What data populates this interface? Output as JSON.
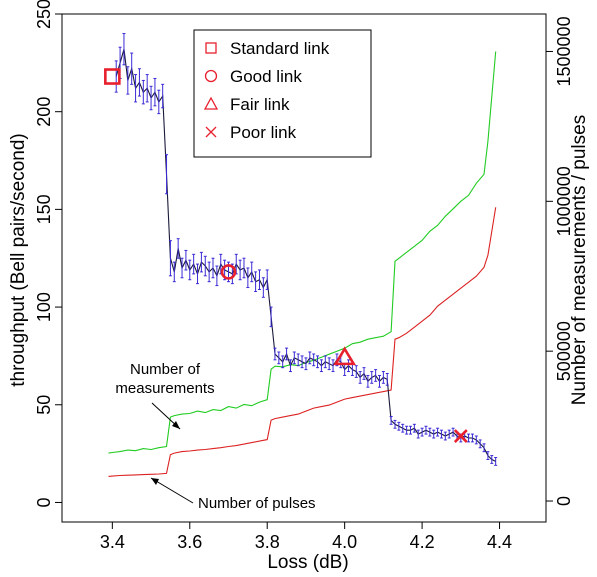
{
  "chart_data": {
    "type": "line",
    "xlabel": "Loss (dB)",
    "ylabel_left": "throughput (Bell pairs/second)",
    "ylabel_right": "Number of measurements / pulses",
    "xlim": [
      3.27,
      4.52
    ],
    "ylim_left": [
      -10,
      250
    ],
    "ylim_right": [
      -70000,
      1625000
    ],
    "x_ticks": [
      3.4,
      3.6,
      3.8,
      4.0,
      4.2,
      4.4
    ],
    "x_tick_labels": [
      "3.4",
      "3.6",
      "3.8",
      "4.0",
      "4.2",
      "4.4"
    ],
    "y_left_ticks": [
      0,
      50,
      100,
      150,
      200,
      250
    ],
    "y_left_tick_labels": [
      "0",
      "50",
      "100",
      "150",
      "200",
      "250"
    ],
    "y_right_ticks": [
      0,
      500000,
      1000000,
      1500000
    ],
    "y_right_tick_labels": [
      "0",
      "500000",
      "1000000",
      "1500000"
    ],
    "series": [
      {
        "name": "throughput",
        "color": "#3b2bd6",
        "line_color": "#1a1a3a",
        "axis": "left",
        "error_bars": true,
        "x": [
          3.41,
          3.42,
          3.43,
          3.44,
          3.45,
          3.46,
          3.47,
          3.48,
          3.49,
          3.5,
          3.51,
          3.52,
          3.53,
          3.54,
          3.55,
          3.56,
          3.57,
          3.58,
          3.59,
          3.6,
          3.61,
          3.62,
          3.63,
          3.64,
          3.65,
          3.66,
          3.67,
          3.68,
          3.69,
          3.7,
          3.71,
          3.72,
          3.73,
          3.74,
          3.75,
          3.76,
          3.77,
          3.78,
          3.79,
          3.8,
          3.81,
          3.82,
          3.83,
          3.84,
          3.85,
          3.86,
          3.87,
          3.88,
          3.89,
          3.9,
          3.91,
          3.92,
          3.93,
          3.94,
          3.95,
          3.96,
          3.97,
          3.98,
          3.99,
          4.0,
          4.01,
          4.02,
          4.03,
          4.04,
          4.05,
          4.06,
          4.07,
          4.08,
          4.09,
          4.1,
          4.11,
          4.12,
          4.13,
          4.14,
          4.15,
          4.16,
          4.17,
          4.18,
          4.19,
          4.2,
          4.21,
          4.22,
          4.23,
          4.24,
          4.25,
          4.26,
          4.27,
          4.28,
          4.29,
          4.3,
          4.31,
          4.32,
          4.33,
          4.34,
          4.35,
          4.36,
          4.37,
          4.38,
          4.39
        ],
        "y": [
          218,
          225,
          232,
          216,
          222,
          212,
          215,
          210,
          212,
          207,
          210,
          205,
          208,
          168,
          125,
          118,
          130,
          120,
          124,
          119,
          122,
          117,
          123,
          121,
          118,
          120,
          116,
          122,
          119,
          118,
          117,
          122,
          119,
          120,
          115,
          118,
          113,
          114,
          110,
          114,
          95,
          76,
          74,
          72,
          76,
          70,
          74,
          73,
          72,
          71,
          74,
          73,
          72,
          70,
          72,
          71,
          70,
          73,
          72,
          68,
          70,
          68,
          67,
          64,
          66,
          62,
          64,
          65,
          62,
          64,
          63,
          42,
          40,
          39,
          38,
          37,
          37,
          38,
          35,
          36,
          37,
          36,
          35,
          36,
          35,
          34,
          35,
          36,
          34,
          33,
          34,
          33,
          33,
          32,
          30,
          28,
          24,
          22,
          21
        ],
        "err": [
          8,
          8,
          8,
          7,
          8,
          7,
          7,
          6,
          7,
          6,
          7,
          6,
          6,
          10,
          9,
          5,
          5,
          5,
          5,
          5,
          5,
          5,
          5,
          5,
          5,
          5,
          5,
          5,
          5,
          5,
          5,
          5,
          5,
          5,
          5,
          5,
          5,
          5,
          5,
          5,
          5,
          3,
          3,
          3,
          3,
          3,
          3,
          3,
          3,
          3,
          3,
          3,
          3,
          3,
          3,
          3,
          3,
          3,
          3,
          3,
          3,
          3,
          3,
          3,
          3,
          3,
          3,
          3,
          3,
          3,
          3,
          2,
          2,
          2,
          2,
          2,
          2,
          2,
          2,
          2,
          2,
          2,
          2,
          2,
          2,
          2,
          2,
          2,
          2,
          2,
          2,
          2,
          2,
          2,
          2,
          2,
          2,
          2,
          2
        ]
      },
      {
        "name": "Number of measurements",
        "color": "#22cc22",
        "axis": "right",
        "x": [
          3.39,
          3.4,
          3.42,
          3.44,
          3.46,
          3.48,
          3.5,
          3.52,
          3.54,
          3.55,
          3.56,
          3.58,
          3.6,
          3.62,
          3.64,
          3.66,
          3.68,
          3.7,
          3.72,
          3.74,
          3.76,
          3.78,
          3.8,
          3.81,
          3.82,
          3.84,
          3.86,
          3.88,
          3.9,
          3.92,
          3.94,
          3.96,
          3.98,
          4.0,
          4.02,
          4.04,
          4.06,
          4.08,
          4.1,
          4.12,
          4.13,
          4.14,
          4.16,
          4.18,
          4.2,
          4.22,
          4.24,
          4.26,
          4.28,
          4.3,
          4.32,
          4.34,
          4.36,
          4.37,
          4.38,
          4.39
        ],
        "y": [
          160000,
          162000,
          165000,
          170000,
          168000,
          175000,
          172000,
          178000,
          182000,
          280000,
          285000,
          290000,
          292000,
          300000,
          295000,
          305000,
          302000,
          315000,
          310000,
          322000,
          318000,
          330000,
          338000,
          440000,
          450000,
          448000,
          455000,
          452000,
          462000,
          470000,
          480000,
          490000,
          500000,
          510000,
          525000,
          530000,
          540000,
          545000,
          550000,
          565000,
          800000,
          810000,
          830000,
          850000,
          870000,
          900000,
          920000,
          950000,
          975000,
          1000000,
          1020000,
          1060000,
          1090000,
          1200000,
          1350000,
          1500000
        ]
      },
      {
        "name": "Number of pulses",
        "color": "#dd2222",
        "axis": "right",
        "x": [
          3.39,
          3.4,
          3.42,
          3.44,
          3.46,
          3.48,
          3.5,
          3.52,
          3.54,
          3.55,
          3.56,
          3.58,
          3.6,
          3.62,
          3.64,
          3.66,
          3.68,
          3.7,
          3.72,
          3.74,
          3.76,
          3.78,
          3.8,
          3.81,
          3.82,
          3.84,
          3.86,
          3.88,
          3.9,
          3.92,
          3.94,
          3.96,
          3.98,
          4.0,
          4.02,
          4.04,
          4.06,
          4.08,
          4.1,
          4.12,
          4.13,
          4.14,
          4.16,
          4.18,
          4.2,
          4.22,
          4.24,
          4.26,
          4.28,
          4.3,
          4.32,
          4.34,
          4.36,
          4.37,
          4.38,
          4.39
        ],
        "y": [
          82000,
          83000,
          85000,
          86000,
          87000,
          88000,
          89000,
          90000,
          92000,
          155000,
          160000,
          165000,
          167000,
          170000,
          172000,
          175000,
          178000,
          182000,
          185000,
          190000,
          195000,
          200000,
          205000,
          270000,
          275000,
          280000,
          285000,
          290000,
          300000,
          310000,
          315000,
          320000,
          330000,
          340000,
          345000,
          350000,
          355000,
          360000,
          365000,
          370000,
          540000,
          545000,
          560000,
          580000,
          600000,
          620000,
          650000,
          670000,
          690000,
          710000,
          730000,
          750000,
          780000,
          820000,
          900000,
          980000
        ]
      }
    ],
    "markers": [
      {
        "label": "Standard link",
        "shape": "square",
        "x": 3.4,
        "y": 218
      },
      {
        "label": "Good link",
        "shape": "circle",
        "x": 3.7,
        "y": 118
      },
      {
        "label": "Fair link",
        "shape": "triangle",
        "x": 4.0,
        "y": 74
      },
      {
        "label": "Poor link",
        "shape": "cross",
        "x": 4.3,
        "y": 34
      }
    ],
    "marker_color": "#e8202e",
    "legend": {
      "position": "top-center",
      "entries": [
        {
          "symbol": "square-icon",
          "label": "Standard link"
        },
        {
          "symbol": "circle-icon",
          "label": "Good link"
        },
        {
          "symbol": "triangle-icon",
          "label": "Fair link"
        },
        {
          "symbol": "cross-icon",
          "label": "Poor link"
        }
      ]
    },
    "annotations": [
      {
        "text_line1": "Number of",
        "text_line2": "measurements",
        "target_series": "Number of measurements"
      },
      {
        "text": "Number of pulses",
        "target_series": "Number of pulses"
      }
    ],
    "grid": false
  }
}
